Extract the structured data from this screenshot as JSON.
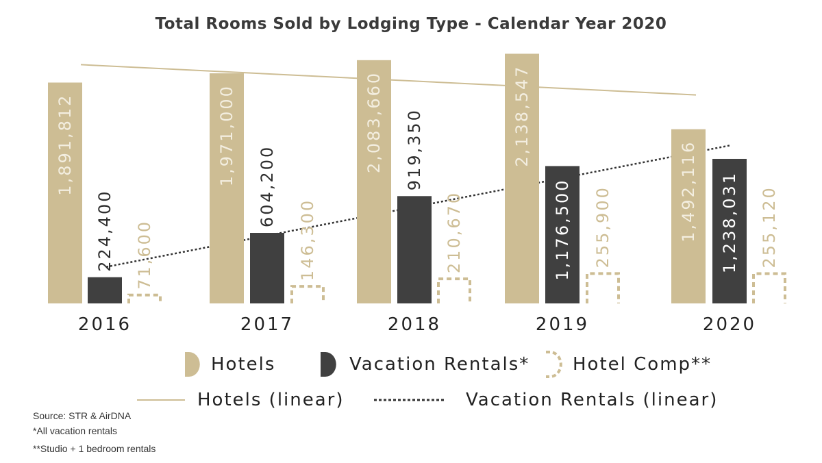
{
  "colors": {
    "hotels": "#cdbd94",
    "vacation_rentals": "#404040",
    "hotel_comp": "#cdbd94",
    "hotels_trend": "#cdbd94",
    "vr_trend": "#333333",
    "hotels_label": "#f3eee0",
    "vr_label_inside": "#ffffff",
    "vr_label_outside": "#2f2f2f",
    "comp_label": "#cdbd94"
  },
  "chart_data": {
    "type": "bar",
    "title": "Total Rooms Sold by Lodging Type - Calendar Year 2020",
    "categories": [
      "2016",
      "2017",
      "2018",
      "2019",
      "2020"
    ],
    "series": [
      {
        "name": "Hotels",
        "values": [
          1891812,
          1971000,
          2083660,
          2138547,
          1492116
        ],
        "labels": [
          "1,891,812",
          "1,971,000",
          "2,083,660",
          "2,138,547",
          "1,492,116"
        ]
      },
      {
        "name": "Vacation Rentals*",
        "values": [
          224400,
          604200,
          919350,
          1176500,
          1238031
        ],
        "labels": [
          "224,400",
          "604,200",
          "919,350",
          "1,176,500",
          "1,238,031"
        ]
      },
      {
        "name": "Hotel Comp**",
        "values": [
          71600,
          146300,
          210670,
          255900,
          255120
        ],
        "labels": [
          "71,600",
          "146,300",
          "210,670",
          "255,900",
          "255,120"
        ]
      }
    ],
    "trendlines": [
      {
        "name": "Hotels (linear)",
        "series": "Hotels"
      },
      {
        "name": "Vacation Rentals (linear)",
        "series": "Vacation Rentals*"
      }
    ],
    "ylim": [
      0,
      2200000
    ],
    "grid": false,
    "legend": "bottom"
  },
  "notes": {
    "source": "Source:  STR & AirDNA",
    "note1": "*All vacation rentals",
    "note2": "**Studio + 1 bedroom rentals"
  }
}
